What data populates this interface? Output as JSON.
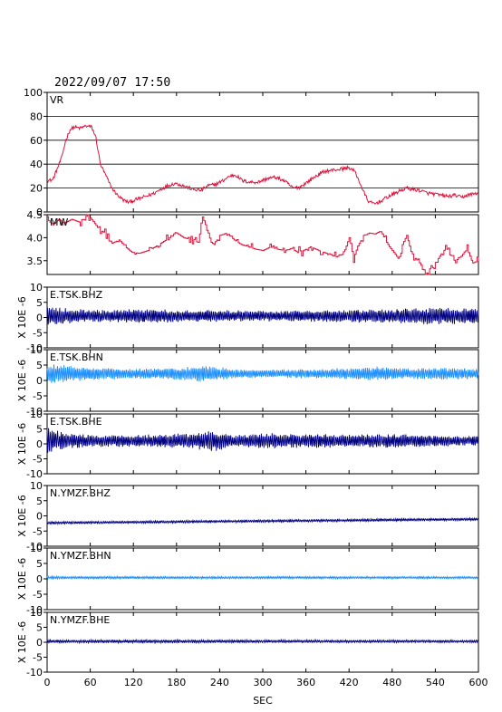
{
  "header": {
    "datetime": "2022/09/07  17:50"
  },
  "colors": {
    "vr": "#dc143c",
    "mw": "#dc143c",
    "dark": "#000080",
    "light": "#1e90ff",
    "axis": "#000000"
  },
  "chart_data": {
    "type": "line",
    "xlabel": "SEC",
    "xlim": [
      0,
      600
    ],
    "xticks": [
      0,
      60,
      120,
      180,
      240,
      300,
      360,
      420,
      480,
      540,
      600
    ],
    "panels": [
      {
        "id": "vr",
        "label": "VR",
        "ylim": [
          0,
          100
        ],
        "yticks": [
          0,
          20,
          40,
          60,
          80,
          100
        ],
        "grid": [
          20,
          40,
          60,
          80
        ],
        "color_key": "vr",
        "series_type": "knots",
        "knots": [
          [
            0,
            26
          ],
          [
            8,
            27
          ],
          [
            14,
            36
          ],
          [
            20,
            45
          ],
          [
            26,
            60
          ],
          [
            32,
            69
          ],
          [
            38,
            71
          ],
          [
            46,
            70
          ],
          [
            54,
            72
          ],
          [
            62,
            71
          ],
          [
            68,
            62
          ],
          [
            74,
            40
          ],
          [
            82,
            30
          ],
          [
            90,
            20
          ],
          [
            98,
            14
          ],
          [
            106,
            10
          ],
          [
            114,
            8
          ],
          [
            122,
            10
          ],
          [
            132,
            12
          ],
          [
            142,
            14
          ],
          [
            150,
            16
          ],
          [
            158,
            19
          ],
          [
            168,
            22
          ],
          [
            178,
            24
          ],
          [
            190,
            22
          ],
          [
            202,
            19
          ],
          [
            214,
            18
          ],
          [
            224,
            22
          ],
          [
            234,
            23
          ],
          [
            244,
            26
          ],
          [
            254,
            30
          ],
          [
            262,
            31
          ],
          [
            272,
            26
          ],
          [
            282,
            25
          ],
          [
            294,
            25
          ],
          [
            306,
            28
          ],
          [
            318,
            29
          ],
          [
            330,
            26
          ],
          [
            342,
            20
          ],
          [
            352,
            21
          ],
          [
            362,
            25
          ],
          [
            374,
            30
          ],
          [
            386,
            34
          ],
          [
            398,
            35
          ],
          [
            410,
            36
          ],
          [
            420,
            37
          ],
          [
            428,
            34
          ],
          [
            434,
            26
          ],
          [
            440,
            17
          ],
          [
            448,
            8
          ],
          [
            456,
            7
          ],
          [
            464,
            9
          ],
          [
            472,
            12
          ],
          [
            482,
            15
          ],
          [
            492,
            18
          ],
          [
            500,
            20
          ],
          [
            508,
            19
          ],
          [
            518,
            18
          ],
          [
            528,
            16
          ],
          [
            538,
            15
          ],
          [
            548,
            14
          ],
          [
            558,
            13
          ],
          [
            568,
            14
          ],
          [
            576,
            12
          ],
          [
            584,
            14
          ],
          [
            592,
            15
          ],
          [
            600,
            16
          ]
        ],
        "noise": 1.5
      },
      {
        "id": "mw",
        "label": "MW",
        "ylim": [
          3.2,
          4.5
        ],
        "yticks": [
          3.5,
          4.0,
          4.5
        ],
        "ytick_labels": [
          "3.5",
          "4.0",
          "4.5"
        ],
        "color_key": "mw",
        "series_type": "steps",
        "knots": [
          [
            0,
            4.4
          ],
          [
            8,
            4.28
          ],
          [
            16,
            4.4
          ],
          [
            24,
            4.32
          ],
          [
            34,
            4.4
          ],
          [
            46,
            4.33
          ],
          [
            56,
            4.5
          ],
          [
            64,
            4.35
          ],
          [
            72,
            4.18
          ],
          [
            80,
            4.1
          ],
          [
            90,
            3.88
          ],
          [
            100,
            3.95
          ],
          [
            110,
            3.78
          ],
          [
            118,
            3.68
          ],
          [
            128,
            3.66
          ],
          [
            140,
            3.72
          ],
          [
            150,
            3.8
          ],
          [
            160,
            3.9
          ],
          [
            170,
            4.0
          ],
          [
            180,
            4.1
          ],
          [
            190,
            4.0
          ],
          [
            200,
            3.95
          ],
          [
            210,
            3.9
          ],
          [
            216,
            4.45
          ],
          [
            222,
            4.2
          ],
          [
            230,
            3.8
          ],
          [
            240,
            4.05
          ],
          [
            250,
            4.1
          ],
          [
            260,
            3.95
          ],
          [
            270,
            3.85
          ],
          [
            280,
            3.8
          ],
          [
            290,
            3.75
          ],
          [
            300,
            3.72
          ],
          [
            310,
            3.8
          ],
          [
            320,
            3.75
          ],
          [
            330,
            3.72
          ],
          [
            342,
            3.78
          ],
          [
            354,
            3.7
          ],
          [
            366,
            3.8
          ],
          [
            378,
            3.72
          ],
          [
            390,
            3.65
          ],
          [
            402,
            3.58
          ],
          [
            412,
            3.65
          ],
          [
            420,
            4.0
          ],
          [
            426,
            3.55
          ],
          [
            432,
            3.82
          ],
          [
            440,
            4.05
          ],
          [
            448,
            4.1
          ],
          [
            456,
            4.08
          ],
          [
            464,
            4.15
          ],
          [
            470,
            3.95
          ],
          [
            476,
            3.8
          ],
          [
            482,
            3.68
          ],
          [
            488,
            3.55
          ],
          [
            494,
            3.85
          ],
          [
            500,
            4.05
          ],
          [
            506,
            3.7
          ],
          [
            512,
            3.55
          ],
          [
            518,
            3.45
          ],
          [
            524,
            3.3
          ],
          [
            530,
            3.2
          ],
          [
            538,
            3.4
          ],
          [
            546,
            3.6
          ],
          [
            554,
            3.8
          ],
          [
            560,
            3.65
          ],
          [
            568,
            3.5
          ],
          [
            576,
            3.6
          ],
          [
            584,
            3.75
          ],
          [
            592,
            3.45
          ],
          [
            600,
            3.5
          ]
        ],
        "noise": 0.05
      },
      {
        "id": "e-tsk-bhz",
        "label": "E.TSK.BHZ",
        "ylim": [
          -10,
          10
        ],
        "yticks": [
          -10,
          -5,
          0,
          5,
          10
        ],
        "ylabel": "X 10E -6",
        "color_key": "dark",
        "series_type": "wave",
        "envelope": [
          [
            0,
            3.6
          ],
          [
            20,
            2.5
          ],
          [
            60,
            1.8
          ],
          [
            120,
            2.2
          ],
          [
            180,
            2.0
          ],
          [
            240,
            1.8
          ],
          [
            300,
            1.6
          ],
          [
            360,
            1.8
          ],
          [
            420,
            2.0
          ],
          [
            480,
            2.2
          ],
          [
            540,
            2.6
          ],
          [
            600,
            2.4
          ]
        ],
        "offset": 0.5
      },
      {
        "id": "e-tsk-bhn",
        "label": "E.TSK.BHN",
        "ylim": [
          -10,
          10
        ],
        "yticks": [
          -10,
          -5,
          0,
          5,
          10
        ],
        "ylabel": "X 10E -6",
        "color_key": "light",
        "series_type": "wave",
        "envelope": [
          [
            0,
            3.0
          ],
          [
            30,
            2.6
          ],
          [
            60,
            2.0
          ],
          [
            120,
            1.6
          ],
          [
            180,
            1.8
          ],
          [
            220,
            2.6
          ],
          [
            260,
            1.4
          ],
          [
            300,
            1.2
          ],
          [
            360,
            1.4
          ],
          [
            420,
            1.8
          ],
          [
            460,
            2.2
          ],
          [
            500,
            1.6
          ],
          [
            540,
            1.8
          ],
          [
            600,
            1.6
          ]
        ],
        "offset": 2.2
      },
      {
        "id": "e-tsk-bhe",
        "label": "E.TSK.BHE",
        "ylim": [
          -10,
          10
        ],
        "yticks": [
          -10,
          -5,
          0,
          5,
          10
        ],
        "ylabel": "X 10E -6",
        "color_key": "dark",
        "series_type": "wave",
        "envelope": [
          [
            0,
            4.5
          ],
          [
            10,
            3.4
          ],
          [
            40,
            2.2
          ],
          [
            80,
            1.8
          ],
          [
            140,
            2.0
          ],
          [
            200,
            2.4
          ],
          [
            230,
            3.4
          ],
          [
            260,
            1.8
          ],
          [
            300,
            2.4
          ],
          [
            360,
            2.2
          ],
          [
            420,
            2.0
          ],
          [
            480,
            2.2
          ],
          [
            540,
            1.8
          ],
          [
            600,
            1.4
          ]
        ],
        "offset": 1.0
      },
      {
        "id": "n-ymzf-bhz",
        "label": "N.YMZF.BHZ",
        "ylim": [
          -10,
          10
        ],
        "yticks": [
          -10,
          -5,
          0,
          5,
          10
        ],
        "ylabel": "X 10E -6",
        "color_key": "dark",
        "series_type": "wave",
        "envelope": [
          [
            0,
            0.4
          ],
          [
            600,
            0.4
          ]
        ],
        "offset": -2.3,
        "drift": 1.2
      },
      {
        "id": "n-ymzf-bhn",
        "label": "N.YMZF.BHN",
        "ylim": [
          -10,
          10
        ],
        "yticks": [
          -10,
          -5,
          0,
          5,
          10
        ],
        "ylabel": "X 10E -6",
        "color_key": "light",
        "series_type": "wave",
        "envelope": [
          [
            0,
            0.4
          ],
          [
            600,
            0.35
          ]
        ],
        "offset": 0.4
      },
      {
        "id": "n-ymzf-bhe",
        "label": "N.YMZF.BHE",
        "ylim": [
          -10,
          10
        ],
        "yticks": [
          -10,
          -5,
          0,
          5,
          10
        ],
        "ylabel": "X 10E -6",
        "color_key": "dark",
        "series_type": "wave",
        "envelope": [
          [
            0,
            0.5
          ],
          [
            600,
            0.4
          ]
        ],
        "offset": 0.3
      }
    ]
  }
}
